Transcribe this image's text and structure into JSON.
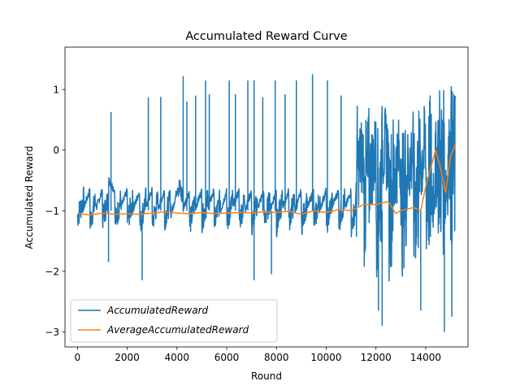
{
  "chart_data": {
    "type": "line",
    "title": "Accumulated Reward Curve",
    "xlabel": "Round",
    "ylabel": "Accumulated Reward",
    "xlim": [
      -500,
      15700
    ],
    "ylim": [
      -3.25,
      1.7
    ],
    "x_ticks": [
      0,
      2000,
      4000,
      6000,
      8000,
      10000,
      12000,
      14000
    ],
    "x_tick_labels": [
      "0",
      "2000",
      "4000",
      "6000",
      "8000",
      "10000",
      "12000",
      "14000"
    ],
    "y_ticks": [
      1,
      0,
      -1,
      -2,
      -3
    ],
    "y_tick_labels": [
      "1",
      "0",
      "−1",
      "−2",
      "−3"
    ],
    "grid": false,
    "legend_position": "lower-left",
    "series": [
      {
        "name": "AccumulatedReward",
        "color": "#1f77b4",
        "x": [
          0,
          250,
          500,
          750,
          1000,
          1250,
          1500,
          1750,
          2000,
          2250,
          2500,
          2750,
          3000,
          3250,
          3500,
          3750,
          4000,
          4250,
          4500,
          4750,
          5000,
          5250,
          5500,
          5750,
          6000,
          6250,
          6500,
          6750,
          7000,
          7250,
          7500,
          7750,
          8000,
          8250,
          8500,
          8750,
          9000,
          9250,
          9500,
          9750,
          10000,
          10250,
          10500,
          10750,
          11000,
          11250,
          11500,
          11750,
          12000,
          12250,
          12500,
          12750,
          13000,
          13250,
          13500,
          13750,
          14000,
          14250,
          14500,
          14750,
          15000,
          15200
        ],
        "values": [
          -1.0,
          -0.9,
          -1.3,
          -0.95,
          -1.1,
          0.63,
          -1.4,
          -0.9,
          -1.2,
          -1.0,
          -1.5,
          -0.85,
          -1.3,
          -0.95,
          -1.1,
          -1.4,
          0.93,
          -1.0,
          -1.5,
          -0.9,
          -1.2,
          -0.85,
          -1.3,
          -1.1,
          -1.4,
          -0.8,
          -1.2,
          -1.0,
          -1.6,
          -0.9,
          -1.3,
          -1.0,
          -1.5,
          -0.85,
          -1.2,
          -1.1,
          -1.45,
          -0.9,
          -1.3,
          -1.0,
          -1.5,
          -0.8,
          -1.3,
          -1.0,
          -1.6,
          -0.85,
          -1.5,
          -1.1,
          -1.9,
          0.4,
          -2.1,
          -0.9,
          -2.3,
          -1.0,
          -2.0,
          -0.9,
          -0.5,
          -2.8,
          1.0,
          -2.5,
          0.6,
          -0.3
        ],
        "spikes_up": [
          [
            1350,
            0.63
          ],
          [
            2850,
            0.87
          ],
          [
            3350,
            0.88
          ],
          [
            4250,
            1.22
          ],
          [
            4400,
            0.8
          ],
          [
            4750,
            0.9
          ],
          [
            5150,
            1.15
          ],
          [
            5300,
            0.92
          ],
          [
            6100,
            1.15
          ],
          [
            6350,
            0.92
          ],
          [
            6850,
            1.15
          ],
          [
            7100,
            1.15
          ],
          [
            7450,
            0.87
          ],
          [
            7950,
            1.15
          ],
          [
            8350,
            0.92
          ],
          [
            8800,
            1.15
          ],
          [
            9450,
            1.25
          ],
          [
            10050,
            1.15
          ],
          [
            10600,
            0.9
          ]
        ],
        "spikes_down": [
          [
            1250,
            -1.85
          ],
          [
            2600,
            -2.15
          ],
          [
            7100,
            -2.15
          ],
          [
            7800,
            -2.05
          ],
          [
            12100,
            -2.65
          ],
          [
            12250,
            -2.9
          ],
          [
            13800,
            -2.65
          ],
          [
            14750,
            -3.0
          ],
          [
            15050,
            -2.75
          ]
        ]
      },
      {
        "name": "AverageAccumulatedReward",
        "color": "#ff7f0e",
        "x": [
          0,
          500,
          1000,
          1500,
          2000,
          2500,
          3000,
          3500,
          4000,
          4500,
          5000,
          5500,
          6000,
          6500,
          7000,
          7500,
          8000,
          8500,
          9000,
          9500,
          10000,
          10500,
          11000,
          11500,
          12000,
          12500,
          12800,
          13000,
          13500,
          13800,
          14000,
          14200,
          14400,
          14600,
          14800,
          15000,
          15200
        ],
        "values": [
          -1.05,
          -1.07,
          -1.04,
          -1.06,
          -1.05,
          -1.06,
          -1.04,
          -1.02,
          -1.04,
          -1.05,
          -1.03,
          -1.05,
          -1.04,
          -1.03,
          -1.04,
          -1.02,
          -1.03,
          -1.01,
          -1.06,
          -1.0,
          -1.03,
          -0.98,
          -1.0,
          -0.9,
          -0.9,
          -0.85,
          -1.05,
          -1.0,
          -0.95,
          -1.0,
          -0.6,
          -0.3,
          0.0,
          -0.3,
          -0.7,
          -0.1,
          0.1
        ]
      }
    ]
  }
}
